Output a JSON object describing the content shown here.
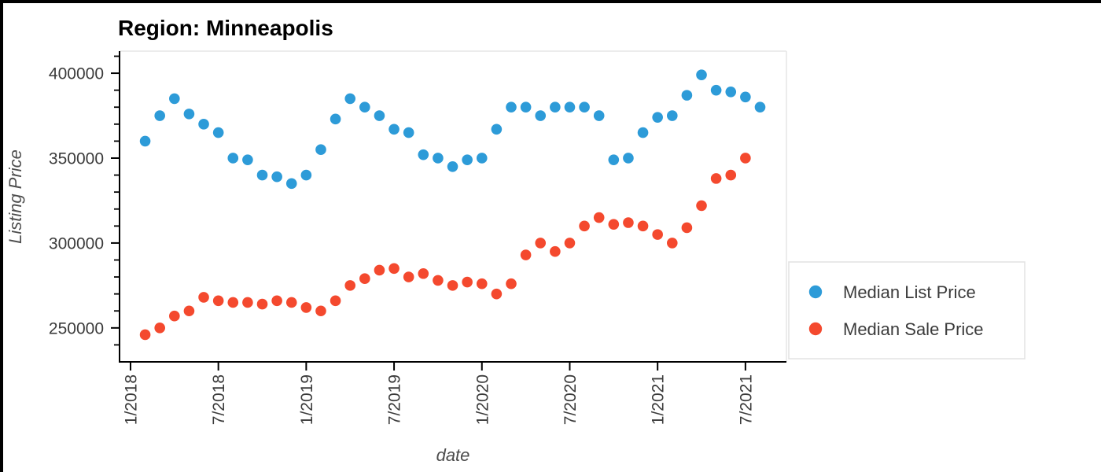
{
  "title": "Region: Minneapolis",
  "colors": {
    "median_list": "#2d9bd8",
    "median_sale": "#f4492e",
    "spine": "#000000",
    "plot_border": "#e6e6e6",
    "tick_label": "#3b3b3b",
    "axis_title": "#4d4d4d",
    "legend_border": "#e2e2e2",
    "legend_bg": "#ffffff"
  },
  "chart_data": {
    "type": "scatter",
    "title": "Region: Minneapolis",
    "xlabel": "date",
    "ylabel": "Listing Price",
    "grid": false,
    "legend_position": "right-outside",
    "x_tick_labels": [
      "1/2018",
      "7/2018",
      "1/2019",
      "7/2019",
      "1/2020",
      "7/2020",
      "1/2021",
      "7/2021"
    ],
    "x_tick_positions": [
      0,
      6,
      12,
      18,
      24,
      30,
      36,
      42
    ],
    "xlim": [
      -0.75,
      44.8
    ],
    "ylim": [
      230000,
      413000
    ],
    "y_ticks": [
      250000,
      300000,
      350000,
      400000
    ],
    "y_minor_step": 10000,
    "y_minor_range": [
      240000,
      410000
    ],
    "x_start_offset": 1,
    "series": [
      {
        "name": "Median List Price",
        "color": "#2d9bd8",
        "dates": [
          "1/2018",
          "2/2018",
          "3/2018",
          "4/2018",
          "5/2018",
          "6/2018",
          "7/2018",
          "8/2018",
          "9/2018",
          "10/2018",
          "11/2018",
          "12/2018",
          "1/2019",
          "2/2019",
          "3/2019",
          "4/2019",
          "5/2019",
          "6/2019",
          "7/2019",
          "8/2019",
          "9/2019",
          "10/2019",
          "11/2019",
          "12/2019",
          "1/2020",
          "2/2020",
          "3/2020",
          "4/2020",
          "5/2020",
          "6/2020",
          "7/2020",
          "8/2020",
          "9/2020",
          "10/2020",
          "11/2020",
          "12/2020",
          "1/2021",
          "2/2021",
          "3/2021",
          "4/2021",
          "5/2021",
          "6/2021",
          "7/2021"
        ],
        "values": [
          360000,
          375000,
          385000,
          376000,
          370000,
          365000,
          350000,
          349000,
          340000,
          339000,
          335000,
          340000,
          355000,
          373000,
          385000,
          380000,
          375000,
          367000,
          365000,
          352000,
          350000,
          345000,
          349000,
          350000,
          367000,
          380000,
          380000,
          375000,
          380000,
          380000,
          380000,
          375000,
          349000,
          350000,
          365000,
          374000,
          375000,
          387000,
          399000,
          390000,
          389000,
          386000,
          380000
        ]
      },
      {
        "name": "Median Sale Price",
        "color": "#f4492e",
        "dates": [
          "1/2018",
          "2/2018",
          "3/2018",
          "4/2018",
          "5/2018",
          "6/2018",
          "7/2018",
          "8/2018",
          "9/2018",
          "10/2018",
          "11/2018",
          "12/2018",
          "1/2019",
          "2/2019",
          "3/2019",
          "4/2019",
          "5/2019",
          "6/2019",
          "7/2019",
          "8/2019",
          "9/2019",
          "10/2019",
          "11/2019",
          "12/2019",
          "1/2020",
          "2/2020",
          "3/2020",
          "4/2020",
          "5/2020",
          "6/2020",
          "7/2020",
          "8/2020",
          "9/2020",
          "10/2020",
          "11/2020",
          "12/2020",
          "1/2021",
          "2/2021",
          "3/2021",
          "4/2021",
          "5/2021",
          "6/2021"
        ],
        "values": [
          246000,
          250000,
          257000,
          260000,
          268000,
          266000,
          265000,
          265000,
          264000,
          266000,
          265000,
          262000,
          260000,
          266000,
          275000,
          279000,
          284000,
          285000,
          280000,
          282000,
          278000,
          275000,
          277000,
          276000,
          270000,
          276000,
          293000,
          300000,
          295000,
          300000,
          310000,
          315000,
          311000,
          312000,
          310000,
          305000,
          300000,
          309000,
          322000,
          338000,
          340000,
          350000
        ]
      }
    ]
  }
}
